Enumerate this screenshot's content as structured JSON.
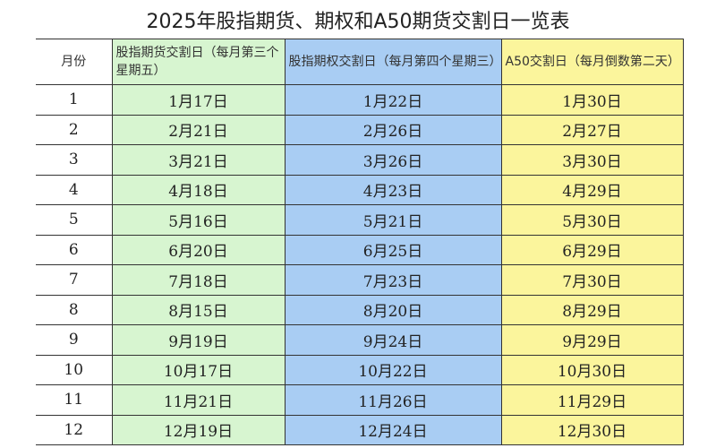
{
  "title": "2025年股指期货、期权和A50期货交割日一览表",
  "headers": [
    "月份",
    "股指期货交割日（每月第三个星期五）",
    "股指期权交割日（每月第四个星期三）",
    "A50交割日（每月倒数第二天）"
  ],
  "colors": {
    "futures": "#d7f5d0",
    "options": "#a9cdf3",
    "a50": "#fbf59c"
  },
  "rows": [
    [
      "1",
      "1月17日",
      "1月22日",
      "1月30日"
    ],
    [
      "2",
      "2月21日",
      "2月26日",
      "2月27日"
    ],
    [
      "3",
      "3月21日",
      "3月26日",
      "3月30日"
    ],
    [
      "4",
      "4月18日",
      "4月23日",
      "4月29日"
    ],
    [
      "5",
      "5月16日",
      "5月21日",
      "5月30日"
    ],
    [
      "6",
      "6月20日",
      "6月25日",
      "6月29日"
    ],
    [
      "7",
      "7月18日",
      "7月23日",
      "7月30日"
    ],
    [
      "8",
      "8月15日",
      "8月20日",
      "8月29日"
    ],
    [
      "9",
      "9月19日",
      "9月24日",
      "9月29日"
    ],
    [
      "10",
      "10月17日",
      "10月22日",
      "10月30日"
    ],
    [
      "11",
      "11月21日",
      "11月26日",
      "11月29日"
    ],
    [
      "12",
      "12月19日",
      "12月24日",
      "12月30日"
    ]
  ]
}
